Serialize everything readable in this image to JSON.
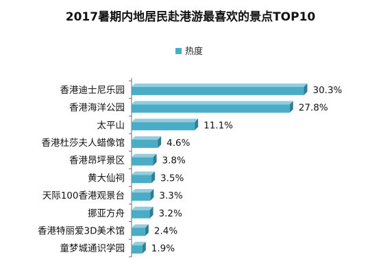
{
  "chart_data": {
    "type": "bar",
    "orientation": "horizontal",
    "title": "2017暑期内地居民赴港游最喜欢的景点TOP10",
    "legend": "top",
    "grid": false,
    "xlim": [
      0,
      32
    ],
    "categories": [
      "香港迪士尼乐园",
      "香港海洋公园",
      "太平山",
      "香港杜莎夫人蜡像馆",
      "香港昂坪景区",
      "黄大仙祠",
      "天际100香港观景台",
      "挪亚方舟",
      "香港特丽爱3D美术馆",
      "童梦城通识学园"
    ],
    "series": [
      {
        "name": "热度",
        "values": [
          30.3,
          27.8,
          11.1,
          4.6,
          3.8,
          3.5,
          3.3,
          3.2,
          2.4,
          1.9
        ],
        "value_labels": [
          "30.3%",
          "27.8%",
          "11.1%",
          "4.6%",
          "3.8%",
          "3.5%",
          "3.3%",
          "3.2%",
          "2.4%",
          "1.9%"
        ]
      }
    ],
    "colors": {
      "front": "#4bacc6",
      "top": "#93cddd",
      "side": "#2e7f95",
      "axis": "#6b6b6b"
    }
  }
}
